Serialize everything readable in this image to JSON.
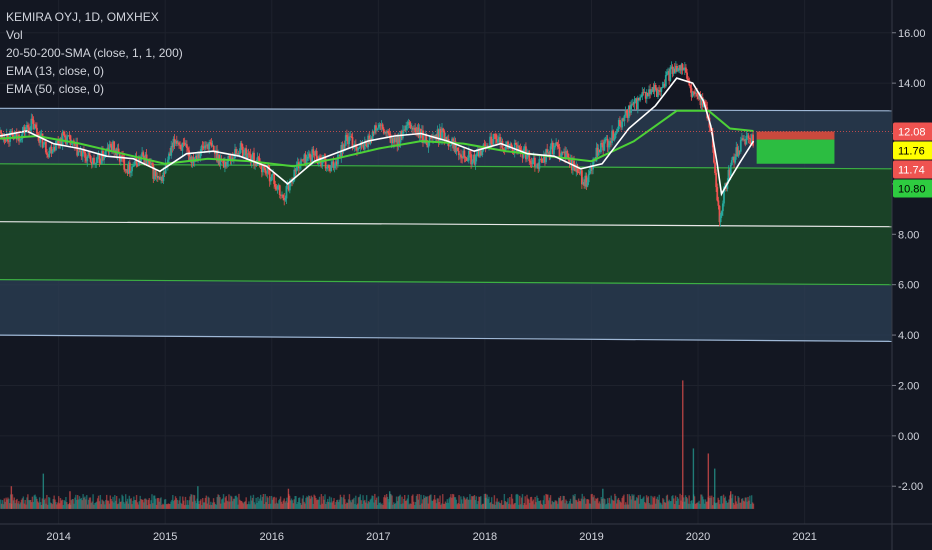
{
  "legend": {
    "symbol": "KEMIRA OYJ, 1D, OMXHEX",
    "volume": "Vol",
    "sma": "20-50-200-SMA (close, 1, 1, 200)",
    "ema13": "EMA (13, close, 0)",
    "ema50": "EMA (50, close, 0)"
  },
  "colors": {
    "background": "#131722",
    "grid": "#1e222d",
    "up": "#26a69a",
    "down": "#ef5350",
    "ema13": "#ffffff",
    "ema50": "#4cd137",
    "channel_fill": "#2a3d52",
    "channel_line": "#9fb8d6",
    "mid_fill": "#1a4428",
    "target_green": "#2ecc40",
    "stop_red": "#e74c3c"
  },
  "price_bubbles": [
    {
      "label": "12.08",
      "value": 12.08,
      "bg": "#ef5350",
      "fg": "#ffffff"
    },
    {
      "label": "11.76",
      "value": 11.76,
      "bg": "#ffff00",
      "fg": "#000000"
    },
    {
      "label": "11.74",
      "value": 11.74,
      "bg": "#ef5350",
      "fg": "#ffffff"
    },
    {
      "label": "10.80",
      "value": 10.8,
      "bg": "#2ecc40",
      "fg": "#000000"
    }
  ],
  "chart_data": {
    "type": "candlestick",
    "title": "KEMIRA OYJ, 1D, OMXHEX",
    "x_ticks": [
      "2014",
      "2015",
      "2016",
      "2017",
      "2018",
      "2019",
      "2020",
      "2021"
    ],
    "x_tick_values": [
      2014,
      2015,
      2016,
      2017,
      2018,
      2019,
      2020,
      2021
    ],
    "x_range": [
      2013.45,
      2021.82
    ],
    "y_ticks": [
      "16.00",
      "14.00",
      "12.00",
      "10.00",
      "8.00",
      "6.00",
      "4.00",
      "2.00",
      "0.00",
      "-2.00"
    ],
    "y_tick_values": [
      16,
      14,
      12,
      10,
      8,
      6,
      4,
      2,
      0,
      -2
    ],
    "y_range": [
      -3.5,
      17.3
    ],
    "grid": true,
    "price_series": {
      "name": "close",
      "x": [
        2013.45,
        2013.6,
        2013.75,
        2013.9,
        2014.05,
        2014.2,
        2014.35,
        2014.5,
        2014.65,
        2014.8,
        2014.95,
        2015.1,
        2015.25,
        2015.4,
        2015.55,
        2015.7,
        2015.85,
        2016.0,
        2016.1,
        2016.25,
        2016.4,
        2016.55,
        2016.7,
        2016.85,
        2017.0,
        2017.15,
        2017.3,
        2017.45,
        2017.6,
        2017.75,
        2017.9,
        2018.05,
        2018.2,
        2018.35,
        2018.5,
        2018.65,
        2018.8,
        2018.95,
        2019.05,
        2019.2,
        2019.35,
        2019.5,
        2019.65,
        2019.75,
        2019.85,
        2019.95,
        2020.05,
        2020.12,
        2020.17,
        2020.2,
        2020.25,
        2020.32,
        2020.4,
        2020.47,
        2020.52
      ],
      "y": [
        12.0,
        11.8,
        12.4,
        11.3,
        11.9,
        11.2,
        10.8,
        11.5,
        10.6,
        11.1,
        10.0,
        11.8,
        11.0,
        11.6,
        10.8,
        11.4,
        10.9,
        10.3,
        9.4,
        10.8,
        11.2,
        10.5,
        11.8,
        11.4,
        12.3,
        11.6,
        12.3,
        11.7,
        12.0,
        11.4,
        10.9,
        11.8,
        11.5,
        11.3,
        10.8,
        11.5,
        10.9,
        10.0,
        11.2,
        11.9,
        12.9,
        13.5,
        13.8,
        14.5,
        14.8,
        13.5,
        13.3,
        12.2,
        10.0,
        8.5,
        9.8,
        10.9,
        11.5,
        11.9,
        11.76
      ]
    },
    "ema13": {
      "name": "EMA (13, close, 0)",
      "x": [
        2013.45,
        2013.7,
        2013.95,
        2014.2,
        2014.45,
        2014.7,
        2014.95,
        2015.2,
        2015.45,
        2015.7,
        2015.95,
        2016.15,
        2016.4,
        2016.65,
        2016.9,
        2017.15,
        2017.4,
        2017.65,
        2017.9,
        2018.15,
        2018.4,
        2018.65,
        2018.9,
        2019.1,
        2019.35,
        2019.6,
        2019.8,
        2019.95,
        2020.05,
        2020.12,
        2020.18,
        2020.22,
        2020.3,
        2020.4,
        2020.52
      ],
      "y": [
        11.9,
        12.1,
        11.6,
        11.4,
        11.1,
        11.0,
        10.5,
        11.2,
        11.3,
        11.1,
        10.7,
        10.0,
        10.9,
        11.3,
        11.7,
        11.9,
        12.0,
        11.7,
        11.3,
        11.6,
        11.2,
        11.1,
        10.6,
        10.8,
        12.2,
        13.1,
        14.2,
        14.0,
        13.3,
        12.3,
        10.8,
        9.6,
        10.2,
        10.9,
        11.7
      ]
    },
    "ema50": {
      "name": "EMA (50, close, 0)",
      "x": [
        2013.45,
        2013.8,
        2014.2,
        2014.6,
        2015.0,
        2015.4,
        2015.8,
        2016.2,
        2016.6,
        2017.0,
        2017.4,
        2017.8,
        2018.2,
        2018.6,
        2019.0,
        2019.4,
        2019.8,
        2020.1,
        2020.3,
        2020.52
      ],
      "y": [
        11.8,
        11.9,
        11.6,
        11.2,
        10.8,
        11.0,
        10.9,
        10.7,
        11.0,
        11.4,
        11.7,
        11.6,
        11.3,
        11.1,
        10.9,
        11.7,
        12.9,
        12.9,
        12.2,
        12.1
      ]
    },
    "channel": {
      "upper": {
        "x": [
          2013.45,
          2021.82
        ],
        "y": [
          13.0,
          12.9
        ]
      },
      "green_line": {
        "x": [
          2013.45,
          2021.82
        ],
        "y": [
          10.8,
          10.6
        ]
      },
      "white_line": {
        "x": [
          2013.45,
          2021.82
        ],
        "y": [
          8.5,
          8.3
        ]
      },
      "lower_green": {
        "x": [
          2013.45,
          2021.82
        ],
        "y": [
          6.2,
          6.0
        ]
      },
      "lower": {
        "x": [
          2013.45,
          2021.82
        ],
        "y": [
          4.0,
          3.75
        ]
      }
    },
    "position": {
      "x_start": 2020.55,
      "x_end": 2021.28,
      "stop": 12.08,
      "entry": 11.76,
      "target": 10.8
    },
    "volume_baseline": -2.9,
    "volume_spikes": [
      {
        "x": 2013.55,
        "y": -2.0
      },
      {
        "x": 2013.85,
        "y": -1.5
      },
      {
        "x": 2014.1,
        "y": -2.2
      },
      {
        "x": 2015.3,
        "y": -2.0
      },
      {
        "x": 2016.15,
        "y": -2.1
      },
      {
        "x": 2017.1,
        "y": -2.2
      },
      {
        "x": 2018.0,
        "y": -2.3
      },
      {
        "x": 2019.1,
        "y": -2.1
      },
      {
        "x": 2019.85,
        "y": 2.2
      },
      {
        "x": 2019.95,
        "y": -0.5
      },
      {
        "x": 2020.09,
        "y": -0.7
      },
      {
        "x": 2020.15,
        "y": -1.3
      },
      {
        "x": 2020.3,
        "y": -2.2
      }
    ]
  }
}
